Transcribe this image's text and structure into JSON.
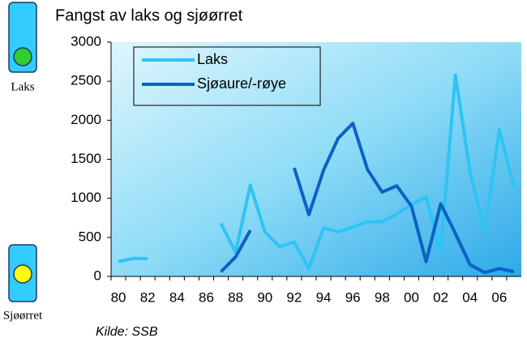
{
  "buttons": [
    "Laks",
    "Sjøørret"
  ],
  "chart_data": {
    "type": "line",
    "title": "Fangst av laks og sjøørret",
    "source": "Kilde: SSB",
    "categories": [
      "80",
      null,
      "82",
      null,
      "84",
      null,
      "86",
      null,
      "88",
      null,
      "90",
      null,
      "92",
      null,
      "94",
      null,
      "96",
      null,
      "98",
      null,
      "00",
      null,
      "02",
      null,
      "04",
      null,
      "06",
      null
    ],
    "series": [
      {
        "name": "Laks",
        "color": "#2ec4f4",
        "values": [
          190,
          230,
          230,
          null,
          null,
          null,
          null,
          680,
          310,
          1170,
          570,
          380,
          440,
          100,
          620,
          570,
          630,
          700,
          700,
          800,
          920,
          1020,
          310,
          2580,
          1340,
          560,
          1880,
          1150
        ]
      },
      {
        "name": "Sjøaure/-røye",
        "color": "#0b62c4",
        "values": [
          null,
          null,
          null,
          null,
          null,
          null,
          null,
          60,
          250,
          590,
          null,
          null,
          1390,
          790,
          1360,
          1770,
          1960,
          1370,
          1080,
          1160,
          900,
          190,
          930,
          550,
          150,
          50,
          100,
          60
        ]
      }
    ],
    "ylim": [
      0,
      3000
    ],
    "yticks": [
      0,
      500,
      1000,
      1500,
      2000,
      2500,
      3000
    ],
    "legend": "top-left"
  }
}
